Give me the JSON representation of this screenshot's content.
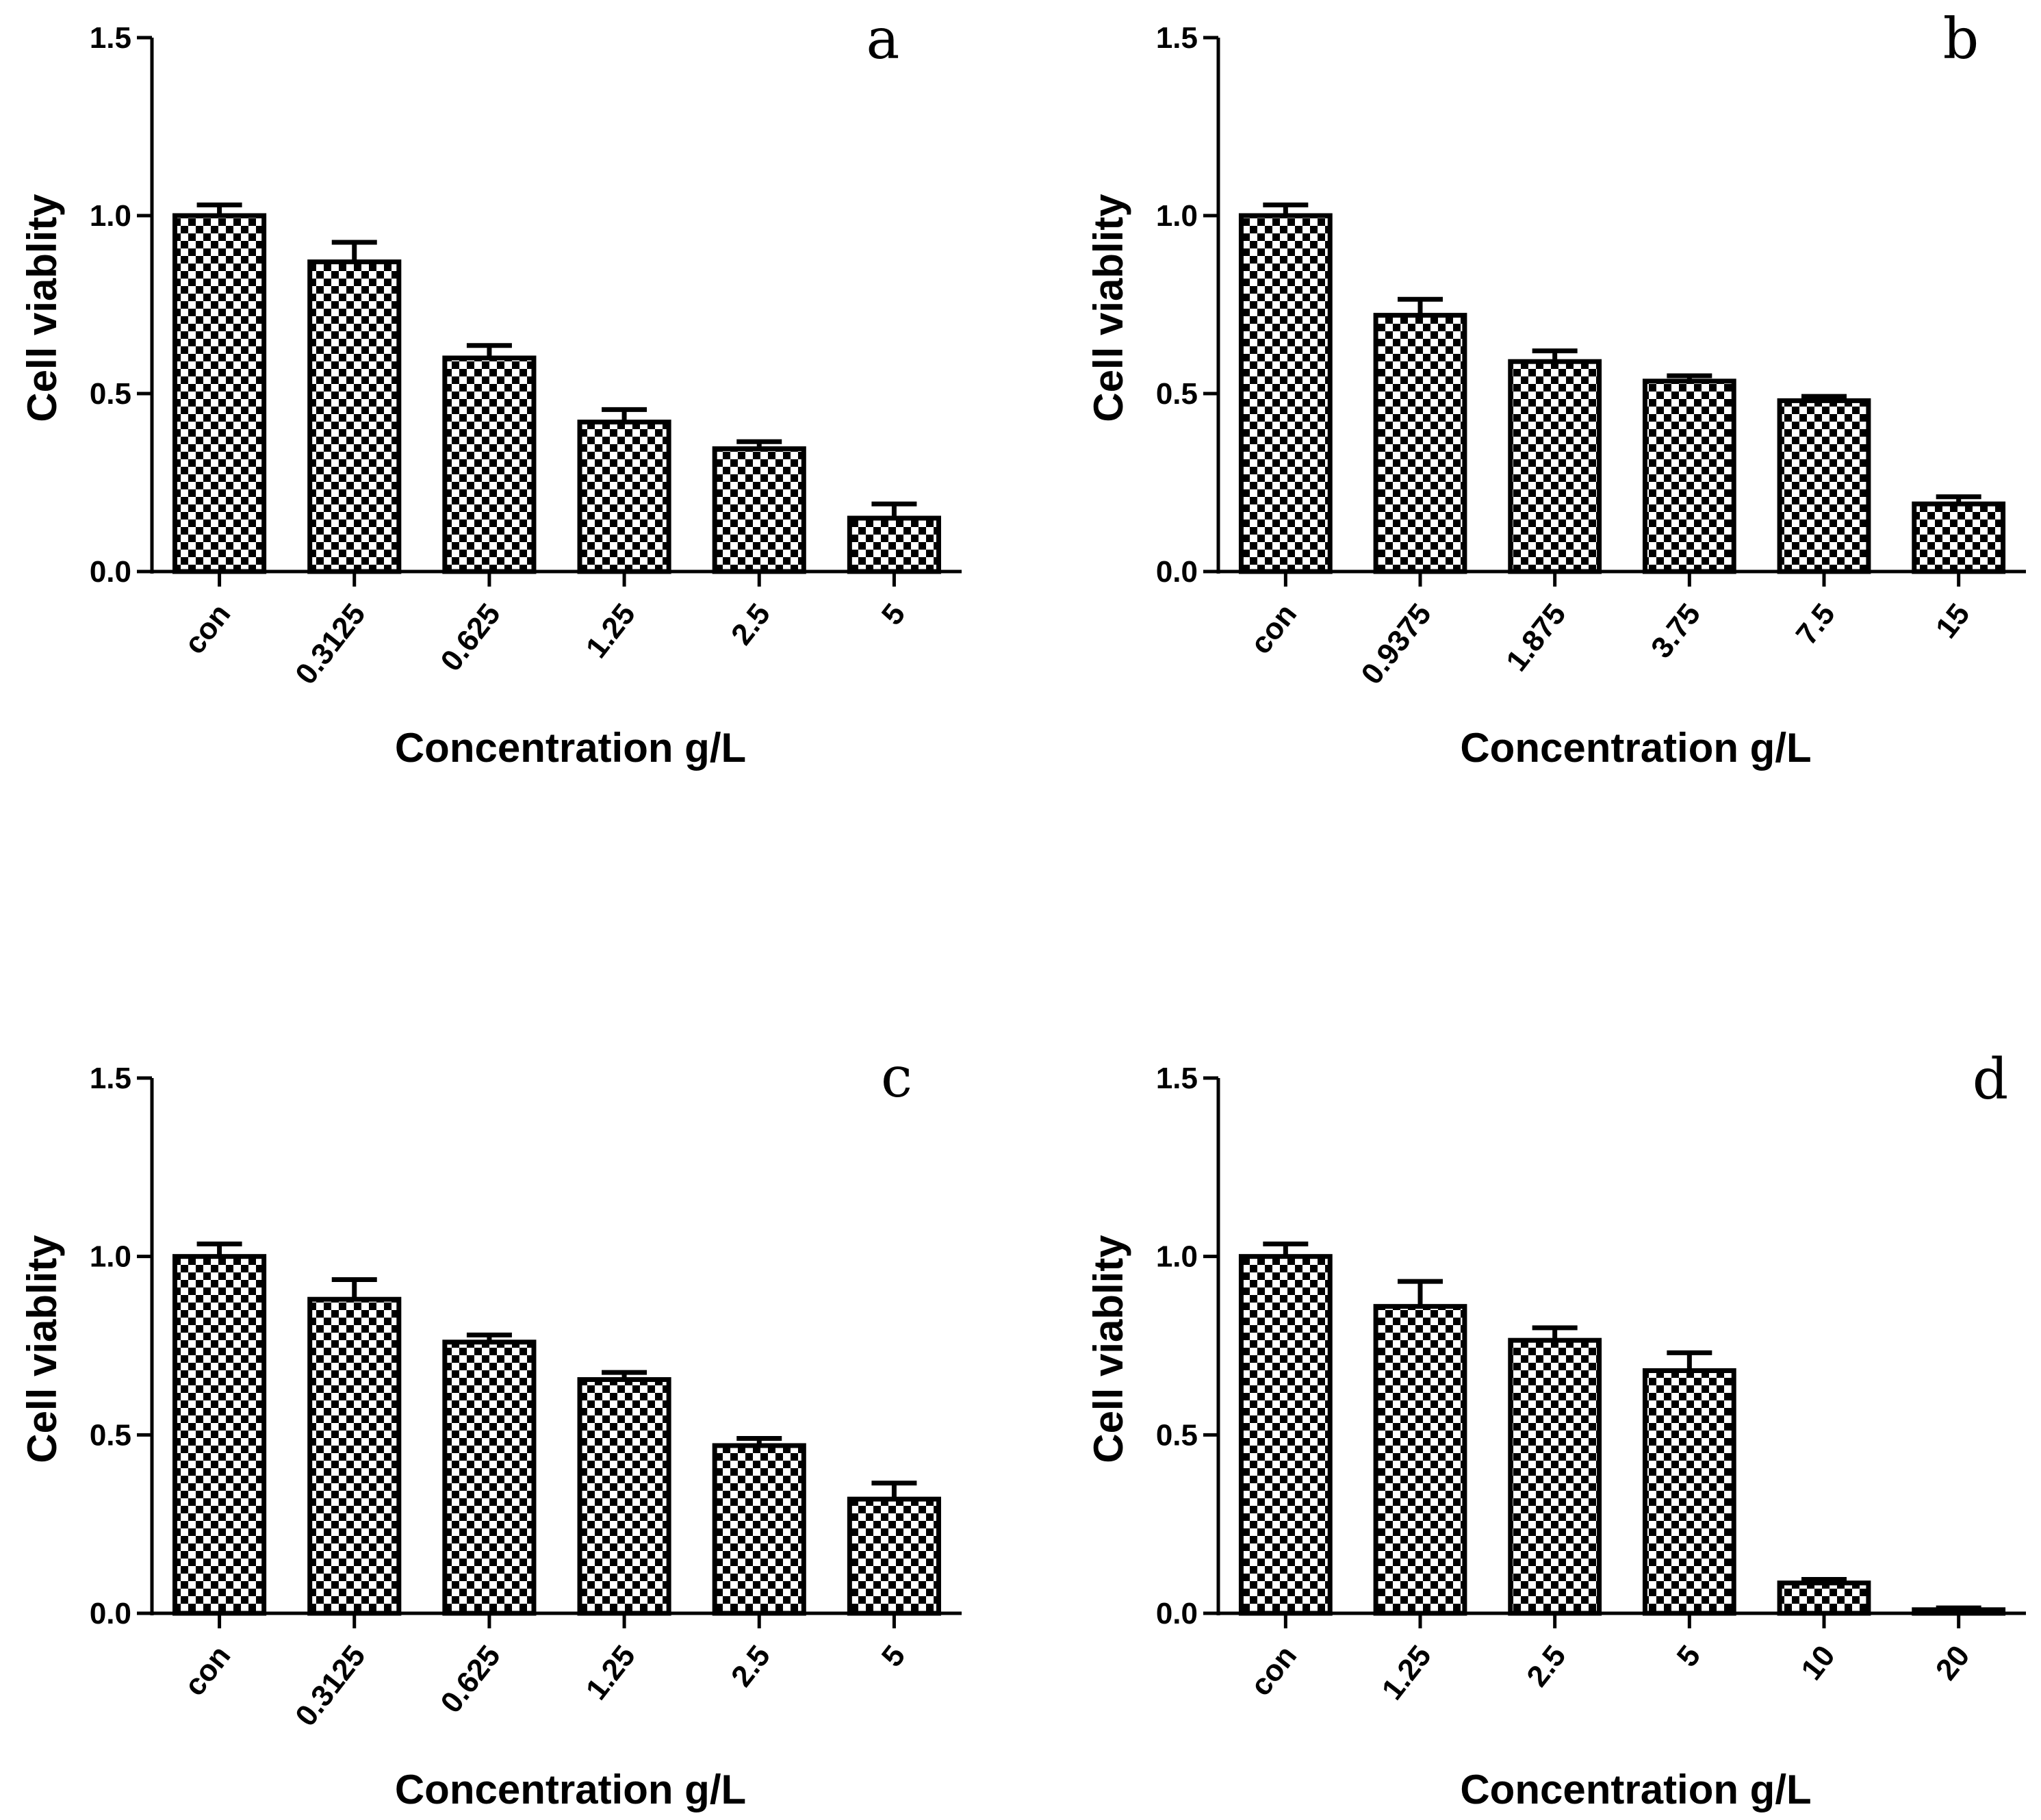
{
  "chart_data": [
    {
      "type": "bar",
      "panel_label": "a",
      "categories": [
        "con",
        "0.3125",
        "0.625",
        "1.25",
        "2.5",
        "5"
      ],
      "values": [
        1.0,
        0.87,
        0.6,
        0.42,
        0.345,
        0.15
      ],
      "errors": [
        0.03,
        0.055,
        0.035,
        0.035,
        0.02,
        0.04
      ],
      "xlabel": "Concentration g/L",
      "ylabel": "Cell viablity",
      "ylim": [
        0,
        1.5
      ],
      "yticks": [
        "0.0",
        "0.5",
        "1.0",
        "1.5"
      ]
    },
    {
      "type": "bar",
      "panel_label": "b",
      "categories": [
        "con",
        "0.9375",
        "1.875",
        "3.75",
        "7.5",
        "15"
      ],
      "values": [
        1.0,
        0.72,
        0.59,
        0.535,
        0.48,
        0.19
      ],
      "errors": [
        0.03,
        0.045,
        0.03,
        0.015,
        0.012,
        0.02
      ],
      "xlabel": "Concentration g/L",
      "ylabel": "Cell viablity",
      "ylim": [
        0,
        1.5
      ],
      "yticks": [
        "0.0",
        "0.5",
        "1.0",
        "1.5"
      ]
    },
    {
      "type": "bar",
      "panel_label": "c",
      "categories": [
        "con",
        "0.3125",
        "0.625",
        "1.25",
        "2.5",
        "5"
      ],
      "values": [
        1.0,
        0.88,
        0.76,
        0.655,
        0.47,
        0.32
      ],
      "errors": [
        0.035,
        0.055,
        0.02,
        0.02,
        0.02,
        0.045
      ],
      "xlabel": "Concentration g/L",
      "ylabel": "Cell viablity",
      "ylim": [
        0,
        1.5
      ],
      "yticks": [
        "0.0",
        "0.5",
        "1.0",
        "1.5"
      ]
    },
    {
      "type": "bar",
      "panel_label": "d",
      "categories": [
        "con",
        "1.25",
        "2.5",
        "5",
        "10",
        "20"
      ],
      "values": [
        1.0,
        0.86,
        0.765,
        0.68,
        0.085,
        0.01
      ],
      "errors": [
        0.035,
        0.07,
        0.035,
        0.05,
        0.01,
        0.005
      ],
      "xlabel": "Concentration g/L",
      "ylabel": "Cell viablity",
      "ylim": [
        0,
        1.5
      ],
      "yticks": [
        "0.0",
        "0.5",
        "1.0",
        "1.5"
      ]
    }
  ]
}
